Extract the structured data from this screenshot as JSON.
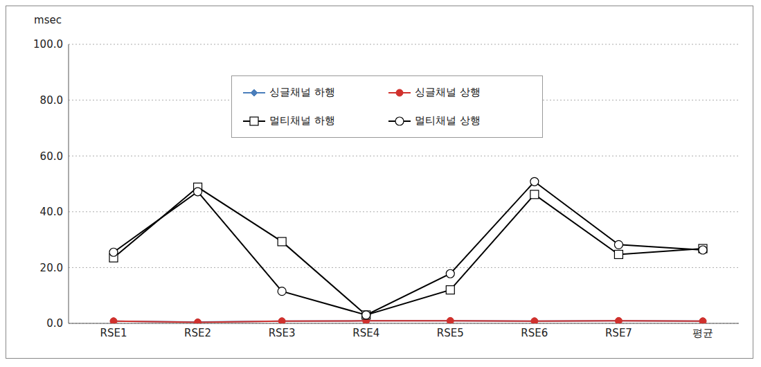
{
  "chart_data": {
    "type": "line",
    "y_label": "msec",
    "categories": [
      "RSE1",
      "RSE2",
      "RSE3",
      "RSE4",
      "RSE5",
      "RSE6",
      "RSE7",
      "평균"
    ],
    "series": [
      {
        "name": "싱글채널 하행",
        "color": "#4a7ebb",
        "marker": "diamond",
        "values": [
          0.8,
          0.5,
          0.8,
          0.9,
          0.9,
          0.8,
          0.9,
          0.8
        ]
      },
      {
        "name": "싱글채널 상행",
        "color": "#d0312d",
        "marker": "circle",
        "values": [
          0.8,
          0.4,
          0.8,
          0.9,
          0.9,
          0.8,
          0.9,
          0.8
        ]
      },
      {
        "name": "멀티채널 하행",
        "color": "#000000",
        "marker": "open_square",
        "values": [
          23.5,
          48.8,
          29.3,
          3.0,
          12.0,
          46.2,
          24.7,
          26.8
        ]
      },
      {
        "name": "멀티채널 상행",
        "color": "#000000",
        "marker": "open_circle",
        "values": [
          25.5,
          47.2,
          11.5,
          3.0,
          17.8,
          50.8,
          28.2,
          26.3
        ]
      }
    ],
    "ylim": [
      0,
      100
    ],
    "yticks": [
      {
        "value": 0,
        "label": "0.0"
      },
      {
        "value": 20,
        "label": "20.0"
      },
      {
        "value": 40,
        "label": "40.0"
      },
      {
        "value": 60,
        "label": "60.0"
      },
      {
        "value": 80,
        "label": "80.0"
      },
      {
        "value": 100,
        "label": "100.0"
      }
    ],
    "grid": true,
    "legend": "top"
  }
}
